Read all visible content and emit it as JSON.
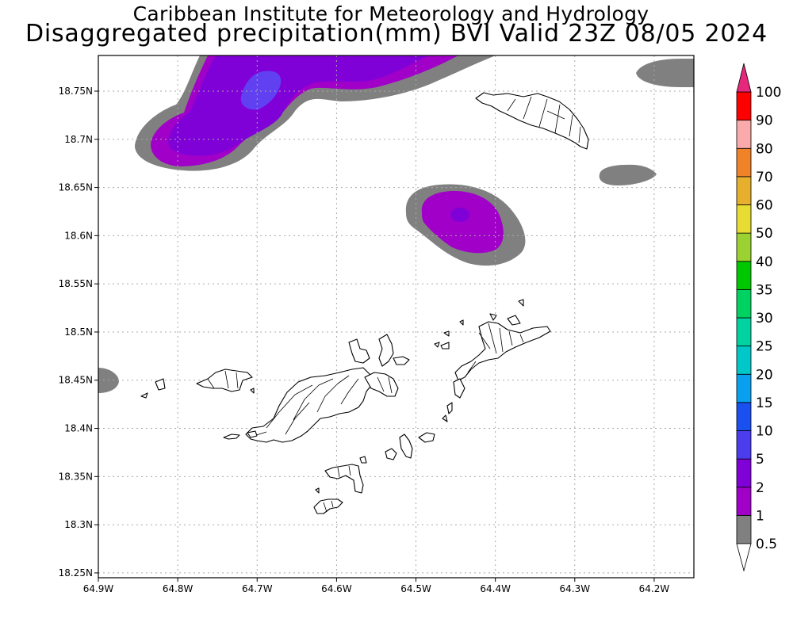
{
  "title_line1": "Caribbean Institute for Meteorology and Hydrology",
  "title_line2": "Disaggregated precipitation(mm) BVI Valid 23Z 08/05 2024",
  "map": {
    "lon_range": [
      -64.9,
      -64.15
    ],
    "lat_range": [
      18.245,
      18.787
    ],
    "lat_ticks": [
      "18.75N",
      "18.7N",
      "18.65N",
      "18.6N",
      "18.55N",
      "18.5N",
      "18.45N",
      "18.4N",
      "18.35N",
      "18.3N",
      "18.25N"
    ],
    "lon_ticks": [
      "64.9W",
      "64.8W",
      "64.7W",
      "64.6W",
      "64.5W",
      "64.4W",
      "64.3W",
      "64.2W"
    ],
    "grid": "dotted",
    "fill_colors": {
      "band_0_5_1": "#808080",
      "band_1_2": "#a000c8",
      "band_2_5": "#8000d8",
      "band_5_10": "#6040f0"
    }
  },
  "colorbar": {
    "labels": [
      "0.5",
      "1",
      "2",
      "5",
      "10",
      "15",
      "20",
      "25",
      "30",
      "35",
      "40",
      "50",
      "60",
      "70",
      "80",
      "90",
      "100"
    ],
    "colors": [
      "#808080",
      "#a000c8",
      "#8000d8",
      "#4b3ced",
      "#1a50f0",
      "#0aa0f0",
      "#00c8c8",
      "#00d2a0",
      "#00d262",
      "#00c800",
      "#9bd232",
      "#e6dc32",
      "#e6af2d",
      "#f08228",
      "#faaaaa",
      "#ff0000",
      "#f03c3c",
      "#e6287d"
    ]
  }
}
